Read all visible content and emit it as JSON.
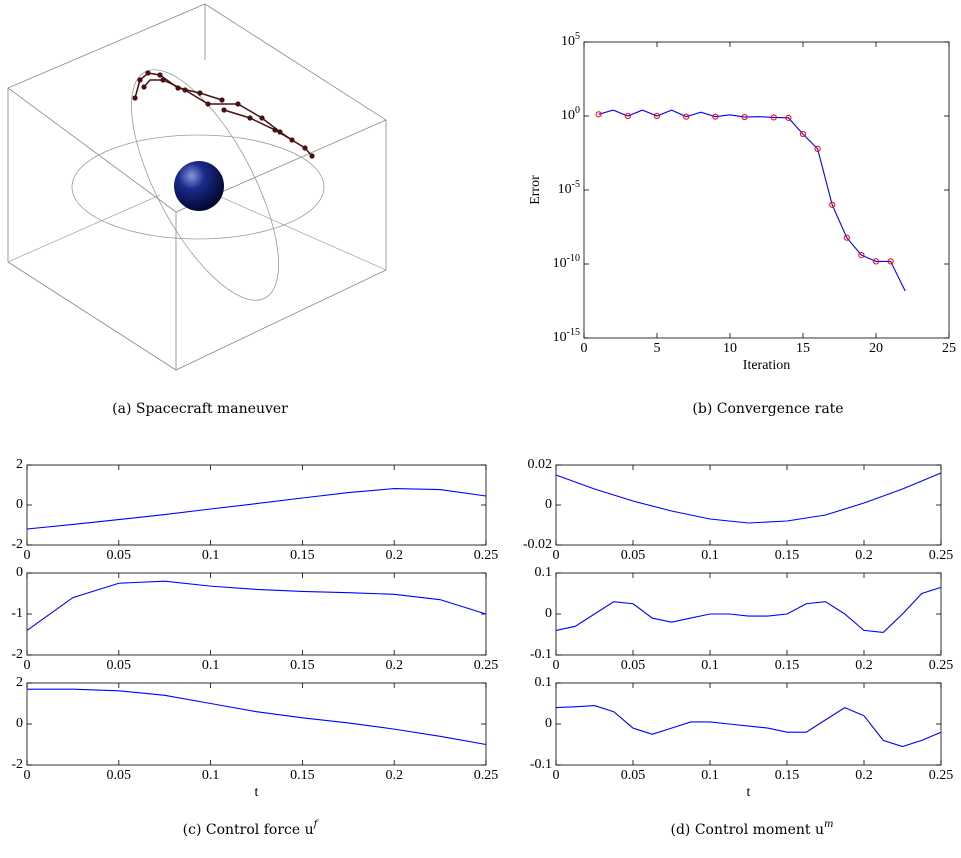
{
  "captions": [
    "(a) Spacecraft maneuver",
    "(b) Convergence rate",
    "(c) Control force u^f",
    "(d) Control moment u^m"
  ],
  "chart_data": [
    {
      "type": "line",
      "log_y": true,
      "xlabel": "Iteration",
      "ylabel": "Error",
      "xlim": [
        0,
        25
      ],
      "xticks": [
        0,
        5,
        10,
        15,
        20,
        25
      ],
      "ylim": [
        1e-15,
        100000.0
      ],
      "yticks": [
        {
          "value": 1e-15,
          "label": "10^-15"
        },
        {
          "value": 1e-10,
          "label": "10^-10"
        },
        {
          "value": 1e-05,
          "label": "10^-5"
        },
        {
          "value": 1,
          "label": "10^0"
        },
        {
          "value": 100000.0,
          "label": "10^5"
        }
      ],
      "x": [
        1,
        2,
        3,
        4,
        5,
        6,
        7,
        8,
        9,
        10,
        11,
        12,
        13,
        14,
        15,
        16,
        17,
        18,
        19,
        20,
        21,
        22
      ],
      "series": [
        {
          "color": "#0000ff",
          "linestyle": "solid",
          "marker": "none",
          "values": [
            1.3,
            2.5,
            1,
            2.5,
            1,
            2.5,
            0.9,
            1.8,
            0.9,
            1.2,
            0.85,
            0.9,
            0.8,
            0.75,
            0.06,
            0.006,
            1e-06,
            6e-09,
            4e-10,
            1.5e-10,
            1.5e-10,
            1.5e-12
          ]
        },
        {
          "color": "#ff0000",
          "linestyle": "none",
          "marker": "o",
          "values": [
            1.3,
            null,
            1,
            null,
            1,
            null,
            0.9,
            null,
            0.9,
            null,
            0.85,
            null,
            0.8,
            0.75,
            0.06,
            0.006,
            1e-06,
            6e-09,
            4e-10,
            1.5e-10,
            1.5e-10,
            null
          ]
        }
      ]
    },
    {
      "type": "line",
      "xlim": [
        0,
        0.25
      ],
      "xticks": [
        0,
        0.05,
        0.1,
        0.15,
        0.2,
        0.25
      ],
      "ylim": [
        -2,
        2
      ],
      "yticks": [
        -2,
        0,
        2
      ],
      "x": [
        0,
        0.025,
        0.05,
        0.075,
        0.1,
        0.125,
        0.15,
        0.175,
        0.2,
        0.225,
        0.25
      ],
      "series": [
        {
          "color": "#0000ff",
          "linestyle": "solid",
          "marker": "none",
          "values": [
            -1.2,
            -0.97,
            -0.73,
            -0.48,
            -0.2,
            0.07,
            0.35,
            0.62,
            0.82,
            0.77,
            0.45
          ]
        }
      ]
    },
    {
      "type": "line",
      "xlim": [
        0,
        0.25
      ],
      "xticks": [
        0,
        0.05,
        0.1,
        0.15,
        0.2,
        0.25
      ],
      "ylim": [
        -2,
        0
      ],
      "yticks": [
        -2,
        -1,
        0
      ],
      "x": [
        0,
        0.025,
        0.05,
        0.075,
        0.1,
        0.125,
        0.15,
        0.175,
        0.2,
        0.225,
        0.25
      ],
      "series": [
        {
          "color": "#0000ff",
          "linestyle": "solid",
          "marker": "none",
          "values": [
            -1.4,
            -0.6,
            -0.25,
            -0.2,
            -0.32,
            -0.4,
            -0.45,
            -0.48,
            -0.52,
            -0.65,
            -1.0
          ]
        }
      ]
    },
    {
      "type": "line",
      "xlabel": "t",
      "xlim": [
        0,
        0.25
      ],
      "xticks": [
        0,
        0.05,
        0.1,
        0.15,
        0.2,
        0.25
      ],
      "ylim": [
        -2,
        2
      ],
      "yticks": [
        -2,
        0,
        2
      ],
      "x": [
        0,
        0.025,
        0.05,
        0.075,
        0.1,
        0.125,
        0.15,
        0.175,
        0.2,
        0.225,
        0.25
      ],
      "series": [
        {
          "color": "#0000ff",
          "linestyle": "solid",
          "marker": "none",
          "values": [
            1.7,
            1.7,
            1.62,
            1.4,
            1.0,
            0.6,
            0.3,
            0.05,
            -0.25,
            -0.6,
            -1.0
          ]
        }
      ]
    },
    {
      "type": "line",
      "xlim": [
        0,
        0.25
      ],
      "xticks": [
        0,
        0.05,
        0.1,
        0.15,
        0.2,
        0.25
      ],
      "ylim": [
        -0.02,
        0.02
      ],
      "yticks": [
        -0.02,
        0,
        0.02
      ],
      "x": [
        0,
        0.025,
        0.05,
        0.075,
        0.1,
        0.125,
        0.15,
        0.175,
        0.2,
        0.225,
        0.25
      ],
      "series": [
        {
          "color": "#0000ff",
          "linestyle": "solid",
          "marker": "none",
          "values": [
            0.015,
            0.008,
            0.002,
            -0.003,
            -0.007,
            -0.009,
            -0.008,
            -0.005,
            0.001,
            0.008,
            0.016
          ]
        }
      ]
    },
    {
      "type": "line",
      "xlim": [
        0,
        0.25
      ],
      "xticks": [
        0,
        0.05,
        0.1,
        0.15,
        0.2,
        0.25
      ],
      "ylim": [
        -0.1,
        0.1
      ],
      "yticks": [
        -0.1,
        0,
        0.1
      ],
      "x": [
        0,
        0.0125,
        0.025,
        0.0375,
        0.05,
        0.0625,
        0.075,
        0.0875,
        0.1,
        0.1125,
        0.125,
        0.1375,
        0.15,
        0.1625,
        0.175,
        0.1875,
        0.2,
        0.2125,
        0.225,
        0.2375,
        0.25
      ],
      "series": [
        {
          "color": "#0000ff",
          "linestyle": "solid",
          "marker": "none",
          "values": [
            -0.04,
            -0.03,
            0.0,
            0.03,
            0.025,
            -0.01,
            -0.02,
            -0.01,
            0.0,
            0.0,
            -0.005,
            -0.005,
            0.0,
            0.025,
            0.03,
            0.0,
            -0.04,
            -0.045,
            0.0,
            0.05,
            0.065
          ]
        }
      ]
    },
    {
      "type": "line",
      "xlabel": "t",
      "xlim": [
        0,
        0.25
      ],
      "xticks": [
        0,
        0.05,
        0.1,
        0.15,
        0.2,
        0.25
      ],
      "ylim": [
        -0.1,
        0.1
      ],
      "yticks": [
        -0.1,
        0,
        0.1
      ],
      "x": [
        0,
        0.0125,
        0.025,
        0.0375,
        0.05,
        0.0625,
        0.075,
        0.0875,
        0.1,
        0.1125,
        0.125,
        0.1375,
        0.15,
        0.1625,
        0.175,
        0.1875,
        0.2,
        0.2125,
        0.225,
        0.2375,
        0.25
      ],
      "series": [
        {
          "color": "#0000ff",
          "linestyle": "solid",
          "marker": "none",
          "values": [
            0.04,
            0.042,
            0.045,
            0.03,
            -0.01,
            -0.025,
            -0.01,
            0.005,
            0.005,
            0.0,
            -0.005,
            -0.01,
            -0.02,
            -0.02,
            0.01,
            0.04,
            0.02,
            -0.04,
            -0.055,
            -0.04,
            -0.02
          ]
        }
      ]
    }
  ]
}
